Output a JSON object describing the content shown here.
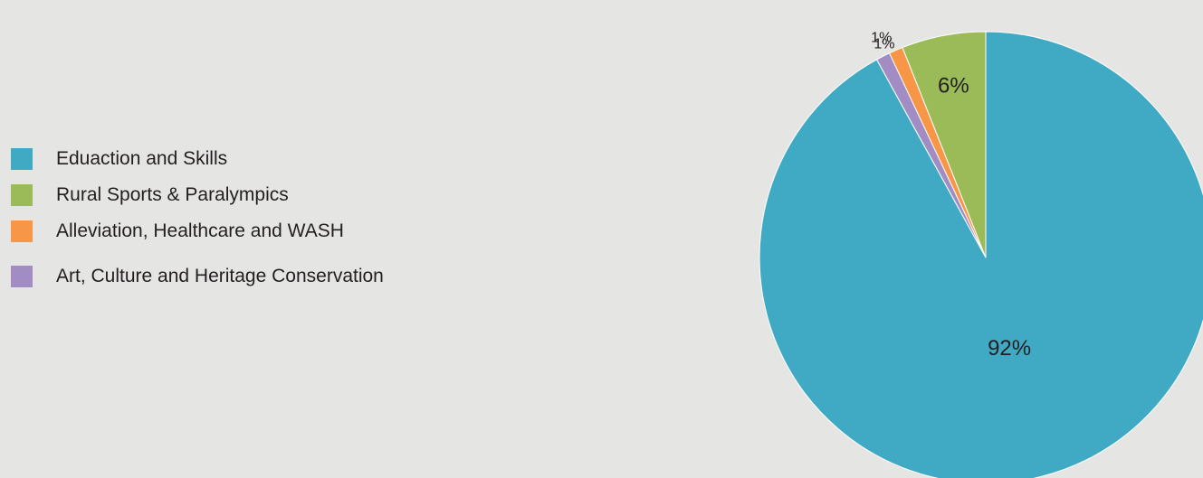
{
  "chart_data": {
    "type": "pie",
    "categories": [
      "Eduaction and Skills",
      "Rural Sports & Paralympics",
      "Alleviation, Healthcare and WASH",
      "Art, Culture and Heritage Conservation"
    ],
    "values": [
      92,
      6,
      1,
      1
    ],
    "data_labels": [
      "92%",
      "6%",
      "1%",
      "1%"
    ],
    "colors": [
      "#40aac4",
      "#9bbb59",
      "#f79646",
      "#a28cc4"
    ],
    "legend_position": "left",
    "title": ""
  }
}
